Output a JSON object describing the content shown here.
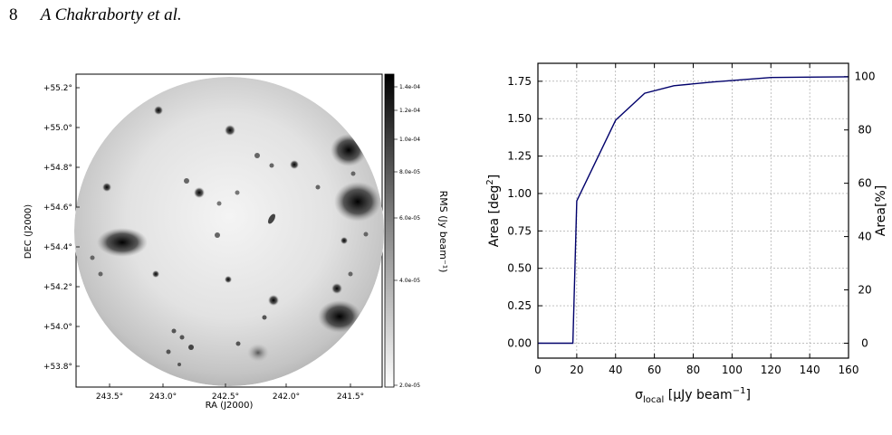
{
  "header": {
    "page_number": "8",
    "authors": "A Chakraborty et al."
  },
  "rms_map": {
    "x_axis_label": "RA (J2000)",
    "y_axis_label": "DEC (J2000)",
    "colorbar_label": "RMS (Jy beam⁻¹)",
    "x_ticks": [
      "243.5°",
      "243.0°",
      "242.5°",
      "242.0°",
      "241.5°"
    ],
    "y_ticks": [
      "+55.2°",
      "+55.0°",
      "+54.8°",
      "+54.6°",
      "+54.4°",
      "+54.2°",
      "+54.0°",
      "+53.8°"
    ],
    "colorbar_ticks": [
      "1.4e-04",
      "1.2e-04",
      "1.0e-04",
      "8.0e-05",
      "6.0e-05",
      "4.0e-05",
      "2.0e-05"
    ]
  },
  "chart_data": {
    "type": "line",
    "title": "",
    "xlabel_main": "σ",
    "xlabel_sub": "local",
    "xlabel_unit": " [μJy beam",
    "xlabel_sup": "−1",
    "xlabel_close": "]",
    "ylabel": "Area [deg",
    "ylabel_sup": "2",
    "ylabel_close": "]",
    "y2label": "Area[%]",
    "xlim": [
      0,
      160
    ],
    "ylim": [
      -0.1,
      1.87
    ],
    "y2lim": [
      -5.6,
      105
    ],
    "x_ticks": [
      "0",
      "20",
      "40",
      "60",
      "80",
      "100",
      "120",
      "140",
      "160"
    ],
    "y_ticks": [
      "0.00",
      "0.25",
      "0.50",
      "0.75",
      "1.00",
      "1.25",
      "1.50",
      "1.75"
    ],
    "y2_ticks": [
      "0",
      "20",
      "40",
      "60",
      "80",
      "100"
    ],
    "grid": true,
    "line_color": "#00006b",
    "series": [
      {
        "x": [
          0,
          18,
          20,
          40,
          55,
          70,
          90,
          120,
          160
        ],
        "y": [
          0,
          0,
          0.95,
          1.49,
          1.67,
          1.72,
          1.745,
          1.775,
          1.78
        ]
      }
    ]
  }
}
